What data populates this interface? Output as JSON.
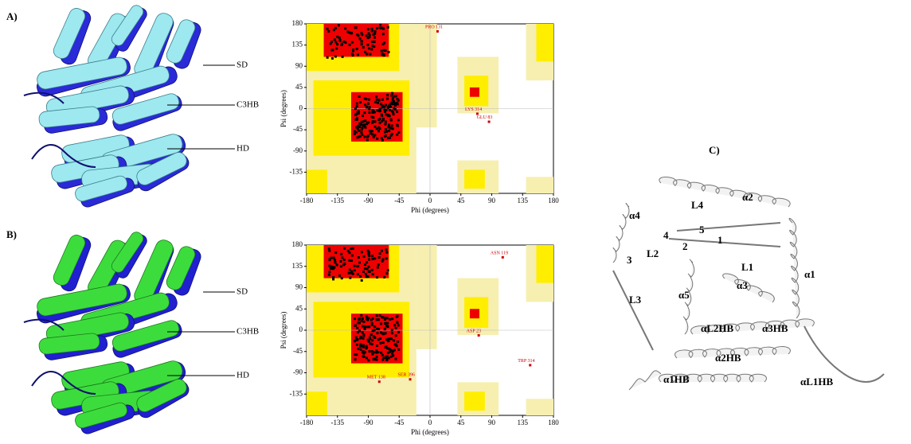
{
  "panels": [
    {
      "label": "A)",
      "structure_labels": [
        "SD",
        "C3HB",
        "HD"
      ],
      "plot": {
        "x_label": "Phi (degrees)",
        "y_label": "Psi (degrees)",
        "xticks": [
          -180,
          -135,
          -90,
          -45,
          0,
          45,
          90,
          135,
          180
        ],
        "yticks": [
          180,
          135,
          90,
          45,
          0,
          -45,
          -90,
          -135
        ],
        "residues": [
          "PRO 131",
          "LYS 314",
          "GLU 83"
        ]
      }
    },
    {
      "label": "B)",
      "structure_labels": [
        "SD",
        "C3HB",
        "HD"
      ],
      "plot": {
        "x_label": "Phi (degrees)",
        "y_label": "Psi (degrees)",
        "xticks": [
          -180,
          -135,
          -90,
          -45,
          0,
          45,
          90,
          135,
          180
        ],
        "yticks": [
          180,
          135,
          90,
          45,
          0,
          -45,
          -90,
          -135
        ],
        "residues": [
          "ASN 119",
          "ASP 23",
          "TRP 314",
          "MET 138",
          "SER 396"
        ]
      }
    },
    {
      "label": "C)",
      "structure_labels": [
        "α4",
        "L4",
        "α2",
        "4",
        "5",
        "1",
        "3",
        "L2",
        "2",
        "L1",
        "α1",
        "α3",
        "L3",
        "α5",
        "αL2HB",
        "α3HB",
        "α2HB",
        "α1HB",
        "αL1HB"
      ]
    }
  ]
}
